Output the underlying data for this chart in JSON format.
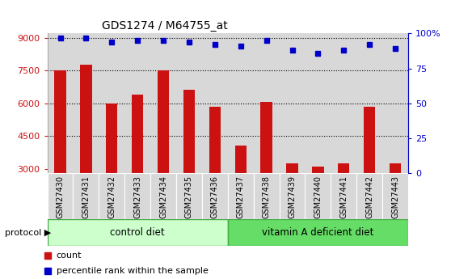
{
  "title": "GDS1274 / M64755_at",
  "samples": [
    "GSM27430",
    "GSM27431",
    "GSM27432",
    "GSM27433",
    "GSM27434",
    "GSM27435",
    "GSM27436",
    "GSM27437",
    "GSM27438",
    "GSM27439",
    "GSM27440",
    "GSM27441",
    "GSM27442",
    "GSM27443"
  ],
  "counts": [
    7500,
    7750,
    6000,
    6400,
    7500,
    6600,
    5850,
    4050,
    6050,
    3250,
    3100,
    3250,
    5850,
    3250
  ],
  "percentile_ranks": [
    97,
    97,
    94,
    95,
    95,
    94,
    92,
    91,
    95,
    88,
    86,
    88,
    92,
    89
  ],
  "bar_color": "#cc1111",
  "dot_color": "#0000cc",
  "ylim_left": [
    2800,
    9200
  ],
  "ylim_right": [
    0,
    100
  ],
  "yticks_left": [
    3000,
    4500,
    6000,
    7500,
    9000
  ],
  "yticks_right": [
    0,
    25,
    50,
    75,
    100
  ],
  "ytick_labels_right": [
    "0",
    "25",
    "50",
    "75",
    "100%"
  ],
  "grid_values": [
    4500,
    6000,
    7500
  ],
  "n_control": 7,
  "n_vita": 7,
  "control_label": "control diet",
  "vit_a_label": "vitamin A deficient diet",
  "protocol_label": "protocol",
  "legend_count_label": "count",
  "legend_pct_label": "percentile rank within the sample",
  "bg_color_control": "#ccffcc",
  "bg_color_vita": "#66dd66",
  "col_bg_color": "#d8d8d8",
  "white": "#ffffff"
}
